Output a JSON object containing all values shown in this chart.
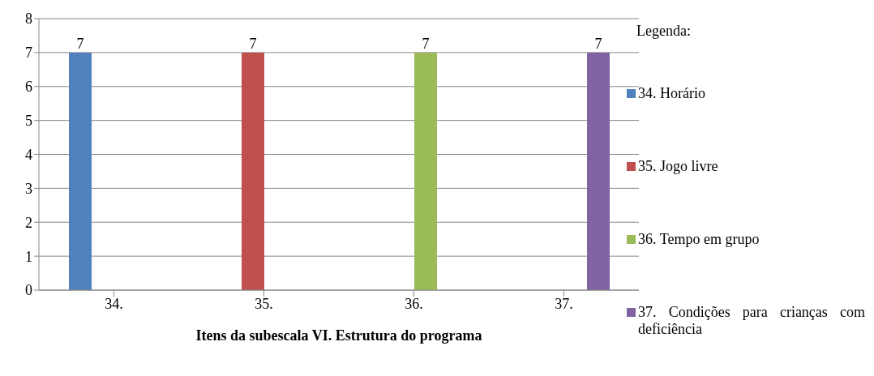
{
  "chart_data": {
    "type": "bar",
    "xlabel": "Itens da subescala VI. Estrutura do programa",
    "legend_title": "Legenda:",
    "categories": [
      "34.",
      "35.",
      "36.",
      "37."
    ],
    "series": [
      {
        "name": "34. Horário",
        "color": "#4f81bd",
        "values": [
          7,
          null,
          null,
          null
        ]
      },
      {
        "name": "35. Jogo livre",
        "color": "#c0504d",
        "values": [
          null,
          7,
          null,
          null
        ]
      },
      {
        "name": "36. Tempo em grupo",
        "color": "#9bbb59",
        "values": [
          null,
          null,
          7,
          null
        ]
      },
      {
        "name": "37. Condições para crianças com deficiência",
        "color": "#8064a2",
        "values": [
          null,
          null,
          null,
          7
        ]
      }
    ],
    "ylim": [
      0,
      8
    ],
    "yticks": [
      0,
      1,
      2,
      3,
      4,
      5,
      6,
      7,
      8
    ],
    "grid": "y",
    "data_labels": true,
    "legend": "right"
  }
}
